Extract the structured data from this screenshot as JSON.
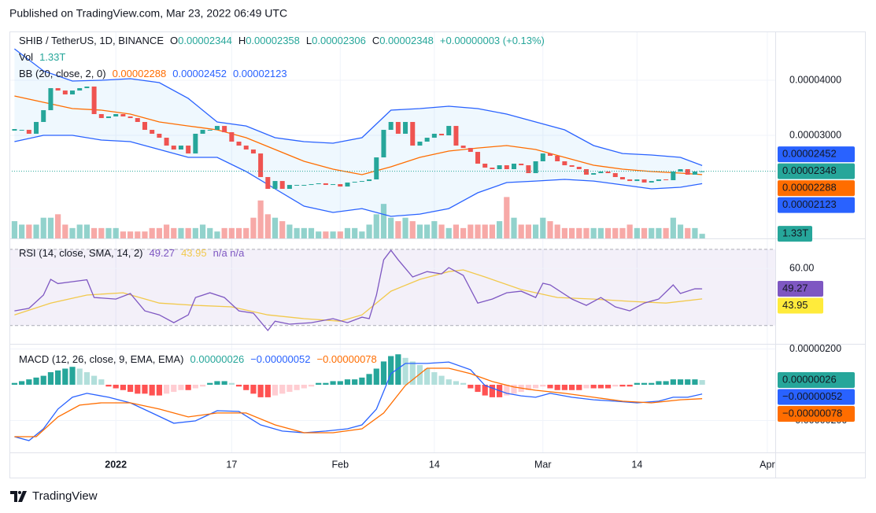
{
  "published": "Published on TradingView.com, Mar 23, 2022 06:49 UTC",
  "brand": "TradingView",
  "chart_data": [
    {
      "type": "candlestick",
      "title": "SHIB / TetherUS, 1D, BINANCE",
      "ohlc": [
        {
          "key": "O",
          "value": "0.00002344"
        },
        {
          "key": "H",
          "value": "0.00002358"
        },
        {
          "key": "L",
          "value": "0.00002306"
        },
        {
          "key": "C",
          "value": "0.00002348"
        }
      ],
      "change": "+0.00000003 (+0.13%)",
      "up_color": "#26a69a",
      "down_color": "#ef5350",
      "xlim": [
        -0.7,
        105.1
      ],
      "xticks": [
        {
          "value": 14,
          "label": "2022"
        },
        {
          "value": 30,
          "label": "17"
        },
        {
          "value": 45,
          "label": "Feb"
        },
        {
          "value": 58,
          "label": "14"
        },
        {
          "value": 73,
          "label": "Mar"
        },
        {
          "value": 86,
          "label": "14"
        },
        {
          "value": 104,
          "label": "Apr"
        }
      ],
      "ylim": [
        1.129e-05,
        4.886e-05
      ],
      "yticks": [
        {
          "value": 4e-05,
          "label": "0.00004000"
        },
        {
          "value": 3e-05,
          "label": "0.00003000"
        }
      ],
      "close": [
        3.1e-05,
        3.1e-05,
        3.029e-05,
        3.243e-05,
        3.457e-05,
        3.857e-05,
        3.814e-05,
        3.743e-05,
        3.814e-05,
        3.857e-05,
        3.886e-05,
        3.386e-05,
        3.314e-05,
        3.343e-05,
        3.386e-05,
        3.343e-05,
        3.314e-05,
        3.243e-05,
        3.1e-05,
        3.029e-05,
        2.957e-05,
        2.814e-05,
        2.743e-05,
        2.814e-05,
        2.671e-05,
        3.029e-05,
        3.1e-05,
        3.1e-05,
        3.171e-05,
        3.057e-05,
        2.886e-05,
        2.814e-05,
        2.743e-05,
        2.671e-05,
        2.243e-05,
        2.029e-05,
        2.171e-05,
        2.029e-05,
        2.1e-05,
        2.1e-05,
        2.1e-05,
        2.114e-05,
        2.129e-05,
        2.1e-05,
        2.114e-05,
        2.071e-05,
        2.143e-05,
        2.157e-05,
        2.171e-05,
        2.2e-05,
        2.6e-05,
        3.1e-05,
        3.243e-05,
        3.029e-05,
        3.243e-05,
        2.814e-05,
        2.886e-05,
        2.957e-05,
        3.029e-05,
        3e-05,
        3.171e-05,
        2.814e-05,
        2.771e-05,
        2.7e-05,
        2.486e-05,
        2.414e-05,
        2.386e-05,
        2.457e-05,
        2.386e-05,
        2.486e-05,
        2.457e-05,
        2.314e-05,
        2.529e-05,
        2.671e-05,
        2.629e-05,
        2.529e-05,
        2.457e-05,
        2.429e-05,
        2.386e-05,
        2.286e-05,
        2.314e-05,
        2.343e-05,
        2.314e-05,
        2.243e-05,
        2.2e-05,
        2.171e-05,
        2.2e-05,
        2.143e-05,
        2.171e-05,
        2.2e-05,
        2.186e-05,
        2.343e-05,
        2.386e-05,
        2.286e-05,
        2.343e-05,
        2.348e-05
      ],
      "volume": {
        "name": "Vol",
        "label": "1.33T",
        "ylim": [
          0,
          60
        ],
        "values": [
          5,
          4,
          4,
          4,
          6,
          6,
          7,
          4,
          3,
          4,
          4,
          3,
          3,
          3,
          3,
          2,
          2,
          2,
          2,
          3,
          3,
          4,
          3,
          3,
          3,
          3,
          4,
          3,
          2,
          3,
          3,
          3,
          3,
          6,
          11,
          7,
          6,
          5,
          4,
          3,
          3,
          3,
          2,
          2,
          2,
          2,
          3,
          3,
          2,
          4,
          7,
          10,
          6,
          5,
          6,
          5,
          4,
          4,
          5,
          4,
          3,
          4,
          3,
          4,
          4,
          4,
          4,
          5,
          12,
          6,
          4,
          4,
          4,
          6,
          5,
          4,
          3,
          3,
          3,
          3,
          3,
          3,
          3,
          3,
          3,
          4,
          3,
          3,
          3,
          3,
          3,
          6,
          4,
          3,
          3,
          1.33
        ]
      },
      "overlays": {
        "name": "BB (20, close, 2, 0)",
        "fill": "rgba(33,150,243,0.07)",
        "x": [
          0,
          4,
          8,
          12,
          16,
          20,
          24,
          28,
          32,
          36,
          40,
          44,
          48,
          52,
          56,
          60,
          64,
          68,
          72,
          76,
          80,
          84,
          88,
          92,
          95
        ],
        "series": [
          {
            "color": "#ff6d00",
            "label": "0.00002288",
            "values": [
              3.714e-05,
              3.6e-05,
              3.486e-05,
              3.457e-05,
              3.386e-05,
              3.243e-05,
              3.171e-05,
              3.1e-05,
              2.957e-05,
              2.743e-05,
              2.529e-05,
              2.386e-05,
              2.286e-05,
              2.429e-05,
              2.6e-05,
              2.714e-05,
              2.771e-05,
              2.814e-05,
              2.743e-05,
              2.6e-05,
              2.457e-05,
              2.386e-05,
              2.343e-05,
              2.314e-05,
              2.288e-05
            ]
          },
          {
            "color": "#2962ff",
            "label": "0.00002452",
            "values": [
              4.571e-05,
              4.171e-05,
              3.986e-05,
              4e-05,
              4.029e-05,
              3.957e-05,
              3.671e-05,
              3.243e-05,
              3.171e-05,
              2.957e-05,
              2.886e-05,
              2.857e-05,
              2.957e-05,
              3.457e-05,
              3.486e-05,
              3.529e-05,
              3.486e-05,
              3.386e-05,
              3.243e-05,
              3.1e-05,
              2.814e-05,
              2.671e-05,
              2.643e-05,
              2.6e-05,
              2.452e-05
            ]
          },
          {
            "color": "#2962ff",
            "label": "0.00002123",
            "values": [
              2.886e-05,
              3e-05,
              3e-05,
              2.914e-05,
              2.886e-05,
              2.743e-05,
              2.6e-05,
              2.6e-05,
              2.343e-05,
              2.029e-05,
              1.714e-05,
              1.6e-05,
              1.671e-05,
              1.529e-05,
              1.571e-05,
              1.671e-05,
              1.957e-05,
              2.143e-05,
              2.171e-05,
              2.2e-05,
              2.171e-05,
              2.1e-05,
              2.029e-05,
              2.057e-05,
              2.123e-05
            ]
          }
        ]
      }
    },
    {
      "type": "line",
      "title": "RSI (14, close, SMA, 14, 2)",
      "note": "n/a  n/a",
      "ylim": [
        20.4,
        75.3
      ],
      "yticks": [
        {
          "value": 60,
          "label": "60.00"
        }
      ],
      "bands": [
        70,
        30
      ],
      "series": [
        {
          "color": "#7e57c2",
          "label": "49.27",
          "x": [
            0,
            2,
            4,
            5,
            6,
            8,
            10,
            11,
            14,
            16,
            18,
            20,
            22,
            24,
            25,
            27,
            29,
            31,
            33,
            35,
            36,
            38,
            41,
            44,
            46,
            48,
            49,
            50,
            51,
            52,
            53,
            55,
            57,
            59,
            60,
            62,
            64,
            66,
            68,
            70,
            72,
            73,
            74,
            77,
            79,
            81,
            83,
            85,
            87,
            89,
            91,
            92,
            94,
            95
          ],
          "values": [
            37.7,
            39,
            46,
            54.2,
            52,
            53,
            54,
            44.7,
            43.9,
            46.8,
            37.7,
            35.6,
            31.5,
            35.6,
            44.7,
            47.2,
            44.7,
            37.7,
            36.5,
            27.4,
            32.3,
            30.7,
            31.5,
            33.6,
            31.5,
            34.4,
            33.6,
            46,
            64.5,
            69.5,
            64.5,
            55.5,
            58.3,
            57.1,
            60.4,
            56.3,
            41.8,
            43.9,
            47.2,
            48,
            44.7,
            52.2,
            51.3,
            43.9,
            40.6,
            44.7,
            39.8,
            37.7,
            41.8,
            43.9,
            51.3,
            46.8,
            49.3,
            49.27
          ]
        },
        {
          "color": "#f2c94c",
          "label": "43.95",
          "x": [
            0,
            5,
            10,
            15,
            20,
            25,
            30,
            35,
            40,
            45,
            48,
            52,
            56,
            60,
            62,
            65,
            70,
            75,
            80,
            85,
            90,
            95
          ],
          "values": [
            35.6,
            41.8,
            46,
            47.2,
            41.8,
            40.6,
            39.8,
            35.6,
            33.6,
            32.3,
            35.6,
            48,
            54.2,
            58.3,
            59.2,
            55.5,
            48.9,
            44.7,
            43.9,
            42.7,
            41.8,
            43.95
          ]
        }
      ]
    },
    {
      "type": "macd",
      "title": "MACD (12, 26, close, 9, EMA, EMA)",
      "ylim": [
        -3.78e-06,
        2.24e-06
      ],
      "yticks": [
        {
          "value": 2e-06,
          "label": "0.00000200"
        },
        {
          "value": -2e-06,
          "label": "−0.00000200"
        }
      ],
      "histogram": {
        "color": "#26a69a",
        "label": "0.00000026",
        "values": [
          1e-07,
          2e-07,
          3e-07,
          4e-07,
          5e-07,
          7e-07,
          8e-07,
          9e-07,
          1e-06,
          9e-07,
          7e-07,
          5e-07,
          3e-07,
          -1e-07,
          -2e-07,
          -3e-07,
          -4e-07,
          -5e-07,
          -5e-07,
          -6e-07,
          -6e-07,
          -5e-07,
          -4e-07,
          -3e-07,
          -3e-07,
          -2e-07,
          -1e-07,
          1e-07,
          2e-07,
          2e-07,
          1e-07,
          -1e-07,
          -3e-07,
          -5e-07,
          -7e-07,
          -7e-07,
          -6e-07,
          -5e-07,
          -4e-07,
          -3e-07,
          -2e-07,
          -1e-07,
          1e-07,
          1e-07,
          2e-07,
          2e-07,
          3e-07,
          3e-07,
          4e-07,
          6e-07,
          9e-07,
          1.3e-06,
          1.6e-06,
          1.7e-06,
          1.5e-06,
          1.3e-06,
          1.1e-06,
          9e-07,
          7e-07,
          5e-07,
          3e-07,
          2e-07,
          1e-07,
          -2e-07,
          -4e-07,
          -6e-07,
          -7e-07,
          -7e-07,
          -6e-07,
          -5e-07,
          -4e-07,
          -3e-07,
          -2e-07,
          -1e-07,
          -2e-07,
          -3e-07,
          -3e-07,
          -3e-07,
          -3e-07,
          -2e-07,
          -2e-07,
          -2e-07,
          -2e-07,
          -1e-07,
          -1e-07,
          -1e-07,
          1e-07,
          1e-07,
          1e-07,
          2e-07,
          2e-07,
          3e-07,
          3e-07,
          3e-07,
          3e-07,
          2.6e-07
        ]
      },
      "series": [
        {
          "color": "#2962ff",
          "label": "−0.00000052",
          "x": [
            0,
            2,
            4,
            6,
            8,
            10,
            13,
            16,
            19,
            22,
            25,
            28,
            31,
            34,
            37,
            40,
            43,
            46,
            48,
            50,
            52,
            54,
            57,
            60,
            63,
            65,
            68,
            70,
            72,
            74,
            77,
            80,
            83,
            86,
            89,
            91,
            93,
            95
          ],
          "values": [
            -2.9e-06,
            -3.12e-06,
            -2.46e-06,
            -1.36e-06,
            -7e-07,
            -4.8e-07,
            -7e-07,
            -1.01e-06,
            -1.58e-06,
            -2.15e-06,
            -2.02e-06,
            -1.45e-06,
            -1.49e-06,
            -2.24e-06,
            -2.59e-06,
            -2.68e-06,
            -2.59e-06,
            -2.46e-06,
            -2.24e-06,
            -1.36e-06,
            6.2e-07,
            1.19e-06,
            1.19e-06,
            1.27e-06,
            8.4e-07,
            -4e-08,
            -4.8e-07,
            -6.2e-07,
            -7e-07,
            -4.8e-07,
            -7e-07,
            -8.4e-07,
            -9.2e-07,
            -1.01e-06,
            -9.2e-07,
            -7e-07,
            -7e-07,
            -5.2e-07
          ]
        },
        {
          "color": "#ff6d00",
          "label": "−0.00000078",
          "x": [
            0,
            3,
            6,
            9,
            12,
            16,
            20,
            24,
            28,
            32,
            36,
            40,
            44,
            48,
            51,
            54,
            57,
            60,
            63,
            66,
            69,
            72,
            76,
            80,
            84,
            88,
            92,
            95
          ],
          "values": [
            -2.9e-06,
            -2.9e-06,
            -1.8e-06,
            -1.14e-06,
            -1.01e-06,
            -1.01e-06,
            -1.36e-06,
            -1.8e-06,
            -1.58e-06,
            -1.58e-06,
            -2.24e-06,
            -2.68e-06,
            -2.68e-06,
            -2.46e-06,
            -1.58e-06,
            -4e-08,
            9.2e-07,
            9.2e-07,
            6.2e-07,
            1.8e-07,
            -1.3e-07,
            -3.1e-07,
            -4.8e-07,
            -7e-07,
            -9.2e-07,
            -1.01e-06,
            -8.4e-07,
            -7.8e-07
          ]
        }
      ]
    }
  ]
}
